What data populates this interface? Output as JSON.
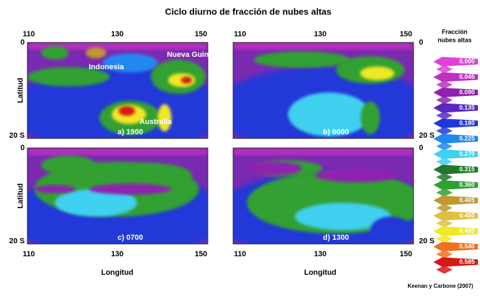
{
  "header": {
    "title": "Ciclo diurno de fracción de nubes altas"
  },
  "axes": {
    "lon_ticks": [
      "110",
      "130",
      "150"
    ],
    "lat_ticks": [
      "0",
      "20 S"
    ],
    "lon_label": "Longitud",
    "lat_label": "Latitud"
  },
  "panels": [
    {
      "label": "a) 1900",
      "annotations": [
        "Indonesia",
        "Nueva Guinea",
        "Australia"
      ]
    },
    {
      "label": "b) 0000"
    },
    {
      "label": "c) 0700"
    },
    {
      "label": "d) 1300"
    }
  ],
  "legend": {
    "title_lines": [
      "Fracción",
      "nubes altas"
    ],
    "levels": [
      {
        "label": "0.000",
        "color": "#e040d8"
      },
      {
        "label": "0.045",
        "color": "#c030c0"
      },
      {
        "label": "0.090",
        "color": "#9020b0"
      },
      {
        "label": "0.135",
        "color": "#5828c0"
      },
      {
        "label": "0.180",
        "color": "#2038d8"
      },
      {
        "label": "0.225",
        "color": "#2088f0"
      },
      {
        "label": "0.270",
        "color": "#40d0f0"
      },
      {
        "label": "0.315",
        "color": "#207828"
      },
      {
        "label": "0.360",
        "color": "#30a030"
      },
      {
        "label": "0.405",
        "color": "#c09830"
      },
      {
        "label": "0.450",
        "color": "#e0c040"
      },
      {
        "label": "0.495",
        "color": "#f0e820"
      },
      {
        "label": "0.540",
        "color": "#f07020"
      },
      {
        "label": "0.585",
        "color": "#d81818"
      }
    ]
  },
  "credit": "Keenan y Carbone (2007)"
}
